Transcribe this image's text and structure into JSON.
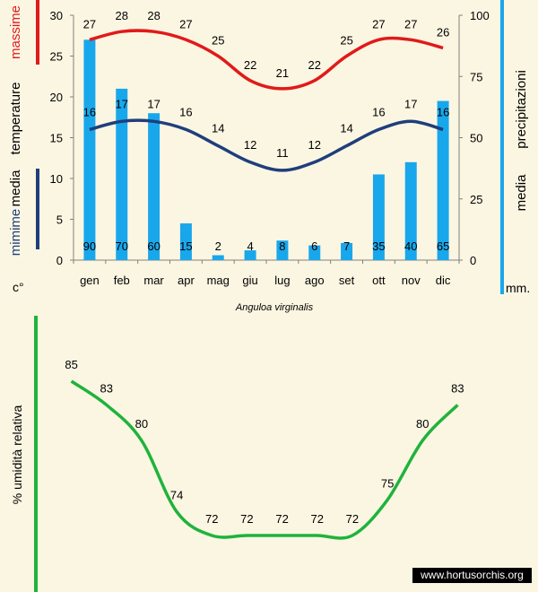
{
  "colors": {
    "max_line": "#e11a1a",
    "min_line": "#1f3e7c",
    "bars": "#19a7ec",
    "humidity_line": "#1fb33c",
    "background": "#fbf6e2"
  },
  "caption": "Anguloa virginalis",
  "watermark": "www.hortusorchis.org",
  "left_axis_labels": {
    "massime": "massime",
    "temperature": "temperature",
    "media": "media",
    "mimime": "mimime",
    "unit": "c°"
  },
  "right_axis_labels": {
    "media": "media",
    "precipitazioni": "precipitazioni",
    "unit": "mm."
  },
  "humidity_axis_label": "% umidità relativa",
  "chart_data": [
    {
      "type": "bar",
      "categories": [
        "gen",
        "feb",
        "mar",
        "apr",
        "mag",
        "giu",
        "lug",
        "ago",
        "set",
        "ott",
        "nov",
        "dic"
      ],
      "y_left_ticks": [
        "0",
        "5",
        "10",
        "15",
        "20",
        "25",
        "30"
      ],
      "y_right_ticks": [
        "0",
        "25",
        "50",
        "75",
        "100"
      ],
      "ylim_left": [
        0,
        30
      ],
      "ylim_right": [
        0,
        100
      ],
      "series": [
        {
          "name": "massime temperature",
          "type": "line",
          "axis": "left",
          "values": [
            27,
            28,
            28,
            27,
            25,
            22,
            21,
            22,
            25,
            27,
            27,
            26
          ],
          "labels": [
            "27",
            "28",
            "28",
            "27",
            "25",
            "22",
            "21",
            "22",
            "25",
            "27",
            "27",
            "26"
          ]
        },
        {
          "name": "mimime temperature",
          "type": "line",
          "axis": "left",
          "values": [
            16,
            17,
            17,
            16,
            14,
            12,
            11,
            12,
            14,
            16,
            17,
            16
          ],
          "labels": [
            "16",
            "17",
            "17",
            "16",
            "14",
            "12",
            "11",
            "12",
            "14",
            "16",
            "17",
            "16"
          ]
        },
        {
          "name": "media precipitazioni",
          "type": "bar",
          "axis": "right",
          "values": [
            90,
            70,
            60,
            15,
            2,
            4,
            8,
            6,
            7,
            35,
            40,
            65
          ],
          "labels": [
            "90",
            "70",
            "60",
            "15",
            "2",
            "4",
            "8",
            "6",
            "7",
            "35",
            "40",
            "65"
          ]
        }
      ]
    },
    {
      "type": "line",
      "categories": [
        "gen",
        "feb",
        "mar",
        "apr",
        "mag",
        "giu",
        "lug",
        "ago",
        "set",
        "ott",
        "nov",
        "dic"
      ],
      "ylabel": "% umidità relativa",
      "ylim": [
        68,
        90
      ],
      "series": [
        {
          "name": "% umidità relativa",
          "values": [
            85,
            83,
            80,
            74,
            72,
            72,
            72,
            72,
            72,
            75,
            80,
            83
          ],
          "labels": [
            "85",
            "83",
            "80",
            "74",
            "72",
            "72",
            "72",
            "72",
            "72",
            "75",
            "80",
            "83"
          ]
        }
      ]
    }
  ]
}
